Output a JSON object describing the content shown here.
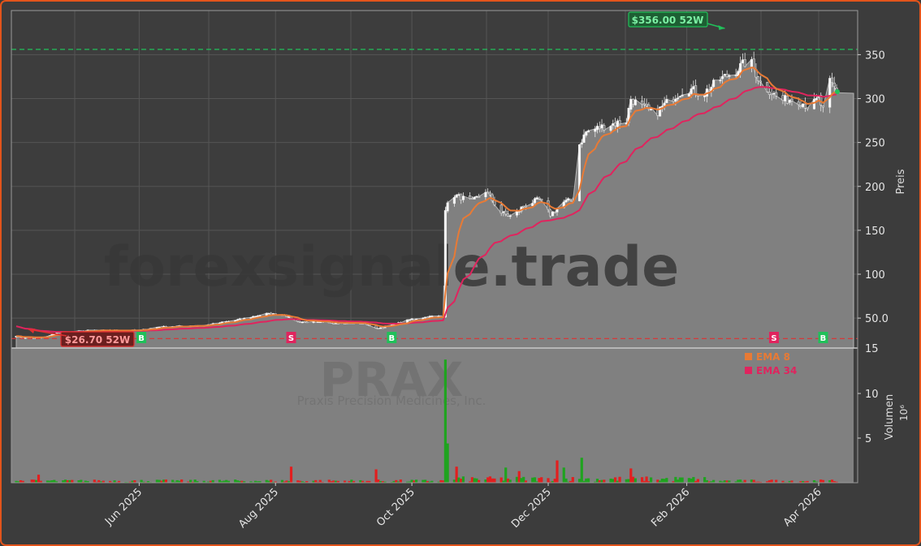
{
  "chart_data": {
    "type": "candlestick",
    "ticker": "PRAX",
    "company": "Praxis Precision Medicines, Inc.",
    "watermark": "forexsignale.trade",
    "price_axis_label": "Preis",
    "volume_axis_label": "Volumen",
    "volume_axis_unit": "10⁶",
    "price_ylim": [
      15,
      373
    ],
    "price_ticks": [
      50,
      100,
      150,
      200,
      250,
      300,
      350
    ],
    "price_tick_labels": [
      "50.0",
      "100",
      "150",
      "200",
      "250",
      "300",
      "350"
    ],
    "volume_ylim": [
      0,
      15
    ],
    "volume_ticks": [
      5,
      10,
      15
    ],
    "volume_tick_labels": [
      "5",
      "10",
      "15"
    ],
    "x_tick_labels": [
      "Jun 2025",
      "Aug 2025",
      "Oct 2025",
      "Dec 2025",
      "Feb 2026",
      "Apr 2026"
    ],
    "x_tick_dates": [
      "2025-06-01",
      "2025-08-01",
      "2025-10-01",
      "2025-12-01",
      "2026-02-01",
      "2026-04-01"
    ],
    "x_range": [
      "2025-04-07",
      "2026-04-09"
    ],
    "high_52w": {
      "label": "$356.00 52W",
      "value": 356.0,
      "date": "2026-02-18"
    },
    "low_52w": {
      "label": "$26.70 52W",
      "value": 26.7,
      "date": "2025-04-09"
    },
    "last_price": 306,
    "legend": {
      "position": "upper-right of volume panel",
      "items": [
        {
          "label": "EMA 8",
          "color": "#e87a35"
        },
        {
          "label": "EMA 34",
          "color": "#e0245e"
        }
      ]
    },
    "signals": [
      {
        "label": "B",
        "date": "2025-06-02",
        "color": "#21c05a"
      },
      {
        "label": "S",
        "date": "2025-08-08",
        "color": "#e0245e"
      },
      {
        "label": "B",
        "date": "2025-09-22",
        "color": "#21c05a"
      },
      {
        "label": "S",
        "date": "2026-03-12",
        "color": "#e0245e"
      },
      {
        "label": "B",
        "date": "2026-04-03",
        "color": "#21c05a"
      }
    ],
    "close_anchors": [
      [
        "2025-04-07",
        30
      ],
      [
        "2025-04-10",
        27.5
      ],
      [
        "2025-04-20",
        28
      ],
      [
        "2025-04-25",
        33
      ],
      [
        "2025-05-10",
        36
      ],
      [
        "2025-06-01",
        36
      ],
      [
        "2025-06-10",
        40
      ],
      [
        "2025-07-01",
        42
      ],
      [
        "2025-07-15",
        48
      ],
      [
        "2025-07-28",
        55
      ],
      [
        "2025-08-05",
        54
      ],
      [
        "2025-08-10",
        46
      ],
      [
        "2025-08-25",
        45
      ],
      [
        "2025-09-10",
        44
      ],
      [
        "2025-09-15",
        38
      ],
      [
        "2025-09-22",
        42
      ],
      [
        "2025-10-01",
        49
      ],
      [
        "2025-10-10",
        52
      ],
      [
        "2025-10-15",
        52
      ],
      [
        "2025-10-16",
        175
      ],
      [
        "2025-10-20",
        190
      ],
      [
        "2025-10-28",
        183
      ],
      [
        "2025-11-03",
        195
      ],
      [
        "2025-11-10",
        170
      ],
      [
        "2025-11-15",
        165
      ],
      [
        "2025-11-20",
        178
      ],
      [
        "2025-11-27",
        185
      ],
      [
        "2025-12-02",
        168
      ],
      [
        "2025-12-08",
        182
      ],
      [
        "2025-12-14",
        186
      ],
      [
        "2025-12-15",
        248
      ],
      [
        "2025-12-18",
        262
      ],
      [
        "2025-12-25",
        268
      ],
      [
        "2026-01-05",
        275
      ],
      [
        "2026-01-07",
        300
      ],
      [
        "2026-01-12",
        290
      ],
      [
        "2026-01-18",
        283
      ],
      [
        "2026-01-25",
        300
      ],
      [
        "2026-02-01",
        312
      ],
      [
        "2026-02-08",
        305
      ],
      [
        "2026-02-16",
        322
      ],
      [
        "2026-02-22",
        330
      ],
      [
        "2026-03-01",
        345
      ],
      [
        "2026-03-06",
        318
      ],
      [
        "2026-03-15",
        298
      ],
      [
        "2026-03-22",
        300
      ],
      [
        "2026-03-28",
        290
      ],
      [
        "2026-04-01",
        300
      ],
      [
        "2026-04-04",
        280
      ],
      [
        "2026-04-06",
        318
      ],
      [
        "2026-04-08",
        312
      ],
      [
        "2026-04-09",
        306
      ]
    ],
    "volume_spikes": [
      [
        "2025-10-16",
        13.8,
        "up"
      ],
      [
        "2025-10-17",
        4.4,
        "up"
      ],
      [
        "2025-10-21",
        1.8,
        "down"
      ],
      [
        "2025-11-12",
        1.7,
        "up"
      ],
      [
        "2025-11-18",
        1.3,
        "down"
      ],
      [
        "2025-12-05",
        2.5,
        "down"
      ],
      [
        "2025-12-08",
        1.7,
        "up"
      ],
      [
        "2025-12-14",
        1.3,
        "down"
      ],
      [
        "2025-12-16",
        2.8,
        "up"
      ],
      [
        "2026-01-07",
        1.6,
        "down"
      ],
      [
        "2025-08-08",
        1.8,
        "down"
      ],
      [
        "2025-09-15",
        1.5,
        "down"
      ],
      [
        "2025-04-13",
        0.9,
        "up"
      ],
      [
        "2025-04-17",
        0.9,
        "down"
      ]
    ]
  }
}
